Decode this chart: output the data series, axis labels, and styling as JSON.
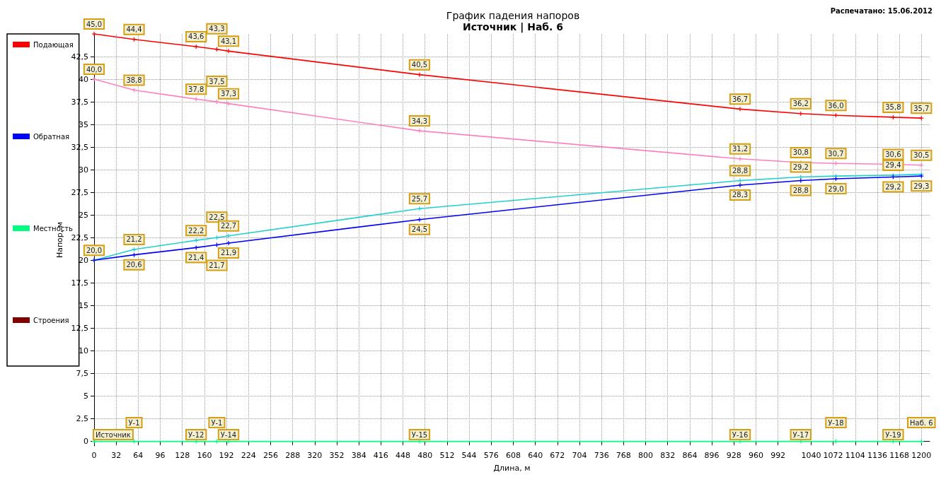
{
  "chart_data": {
    "type": "line",
    "title": "График падения напоров",
    "subtitle": "Источник | Наб. 6",
    "xlabel": "Длина, м",
    "ylabel": "Напор, м",
    "x": [
      0,
      58,
      148,
      178,
      195,
      472,
      937,
      1025,
      1076,
      1159,
      1200
    ],
    "series": [
      {
        "name": "Подающая",
        "color": "#ff0000",
        "values": [
          45.0,
          44.4,
          43.6,
          43.3,
          43.1,
          40.5,
          36.7,
          36.2,
          36.0,
          35.8,
          35.7
        ],
        "value_labels": [
          "45,0",
          "44,4",
          "43,6",
          "43,3",
          "43,1",
          "40,5",
          "36,7",
          "36,2",
          "36,0",
          "35,8",
          "35,7"
        ]
      },
      {
        "color": "#ff80c0",
        "values": [
          40.0,
          38.8,
          37.8,
          37.5,
          37.3,
          34.3,
          31.2,
          30.8,
          30.7,
          30.6,
          30.5
        ],
        "value_labels": [
          "40,0",
          "38,8",
          "37,8",
          "37,5",
          "37,3",
          "34,3",
          "31,2",
          "30,8",
          "30,7",
          "30,6",
          "30,5"
        ]
      },
      {
        "color": "#20d0d0",
        "values": [
          20.0,
          21.2,
          22.2,
          22.5,
          22.7,
          25.7,
          28.8,
          29.2,
          29.3,
          29.4,
          29.5
        ],
        "value_labels": [
          "20,0",
          "21,2",
          "22,2",
          "22,5",
          "22,7",
          "25,7",
          "28,8",
          "29,2",
          null,
          "29,4",
          null
        ]
      },
      {
        "name": "Обратная",
        "color": "#0000ff",
        "values": [
          20.0,
          20.6,
          21.4,
          21.7,
          21.9,
          24.5,
          28.3,
          28.8,
          29.0,
          29.2,
          29.3
        ],
        "value_labels": [
          null,
          "20,6",
          "21,4",
          "21,7",
          "21,9",
          "24,5",
          "28,3",
          "28,8",
          "29,0",
          "29,2",
          "29,3"
        ]
      },
      {
        "name": "Местность",
        "color": "#00ff80",
        "values": [
          0,
          0,
          0,
          0,
          0,
          0,
          0,
          0,
          0,
          0,
          0
        ]
      },
      {
        "name": "Строения",
        "color": "#800000",
        "values": [
          null,
          null,
          null,
          null,
          null,
          null,
          null,
          null,
          null,
          null,
          null
        ]
      }
    ],
    "xlim": [
      0,
      1212
    ],
    "xticks": [
      0,
      32,
      64,
      96,
      128,
      160,
      192,
      224,
      256,
      288,
      320,
      352,
      384,
      416,
      448,
      480,
      512,
      544,
      576,
      608,
      640,
      672,
      704,
      736,
      768,
      800,
      832,
      864,
      896,
      928,
      960,
      992,
      1040,
      1072,
      1104,
      1136,
      1168,
      1200
    ],
    "ylim": [
      -0.5,
      45
    ],
    "yticks": [
      0,
      {
        "value": 2.5,
        "label": "2,5"
      },
      5,
      {
        "value": 7.5,
        "label": "7,5"
      },
      10,
      {
        "value": 12.5,
        "label": "12,5"
      },
      15,
      {
        "value": 17.5,
        "label": "17,5"
      },
      20,
      {
        "value": 22.5,
        "label": "22,5"
      },
      25,
      {
        "value": 27.5,
        "label": "27,5"
      },
      30,
      {
        "value": 32.5,
        "label": "32,5"
      },
      35,
      {
        "value": 37.5,
        "label": "37,5"
      },
      40,
      {
        "value": 42.5,
        "label": "42,5"
      }
    ],
    "grid": true,
    "legend": "left",
    "marker": "cross",
    "line_style": "solid",
    "annotations": [
      "Распечатано: 15.06.2012",
      {
        "text": "Источник",
        "x": 0,
        "y": 0
      },
      {
        "text": "У-1",
        "x": 58,
        "y": 0
      },
      {
        "text": "У-12",
        "x": 148,
        "y": 0
      },
      {
        "text": "У-1",
        "x": 178,
        "y": 0
      },
      {
        "text": "У-14",
        "x": 195,
        "y": 0
      },
      {
        "text": "У-15",
        "x": 472,
        "y": 0
      },
      {
        "text": "У-16",
        "x": 937,
        "y": 0
      },
      {
        "text": "У-17",
        "x": 1025,
        "y": 0
      },
      {
        "text": "У-18",
        "x": 1076,
        "y": 0
      },
      {
        "text": "У-19",
        "x": 1159,
        "y": 0
      },
      {
        "text": "Наб. 6",
        "x": 1200,
        "y": 0
      }
    ]
  }
}
